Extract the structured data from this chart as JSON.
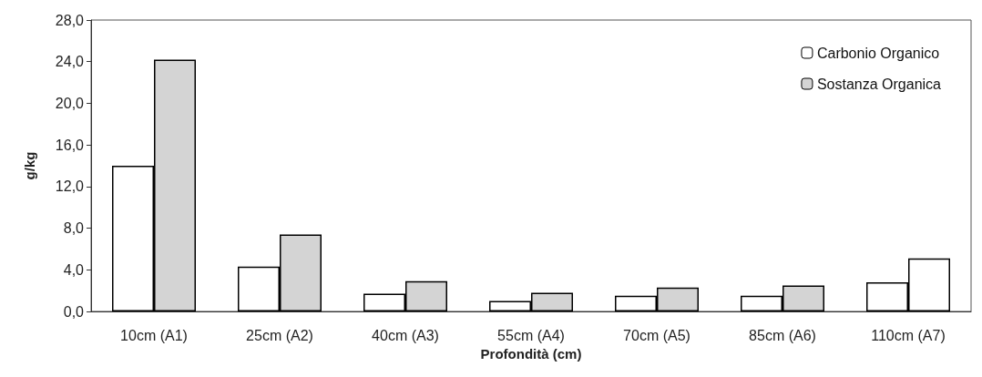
{
  "chart_data": {
    "type": "bar",
    "xlabel": "Profondità (cm)",
    "ylabel": "g/kg",
    "categories": [
      "10cm (A1)",
      "25cm (A2)",
      "40cm (A3)",
      "55cm (A4)",
      "70cm (A5)",
      "85cm (A6)",
      "110cm (A7)"
    ],
    "series": [
      {
        "name": "Carbonio Organico",
        "color": "#ffffff",
        "values": [
          14.0,
          4.3,
          1.7,
          1.0,
          1.5,
          1.5,
          2.8
        ]
      },
      {
        "name": "Sostanza Organica",
        "color": "#d4d4d4",
        "colors": [
          "#d4d4d4",
          "#d4d4d4",
          "#d4d4d4",
          "#d4d4d4",
          "#d4d4d4",
          "#d4d4d4",
          "#ffffff"
        ],
        "values": [
          24.2,
          7.4,
          2.9,
          1.8,
          2.3,
          2.5,
          5.1
        ]
      }
    ],
    "ylim": [
      0,
      28
    ],
    "yticks": [
      {
        "value": 0,
        "label": "0,0"
      },
      {
        "value": 4,
        "label": "4,0"
      },
      {
        "value": 8,
        "label": "8,0"
      },
      {
        "value": 12,
        "label": "12,0"
      },
      {
        "value": 16,
        "label": "16,0"
      },
      {
        "value": 20,
        "label": "20,0"
      },
      {
        "value": 24,
        "label": "24,0"
      },
      {
        "value": 28,
        "label": "28,0"
      }
    ],
    "grid": false,
    "legend": "top right"
  }
}
